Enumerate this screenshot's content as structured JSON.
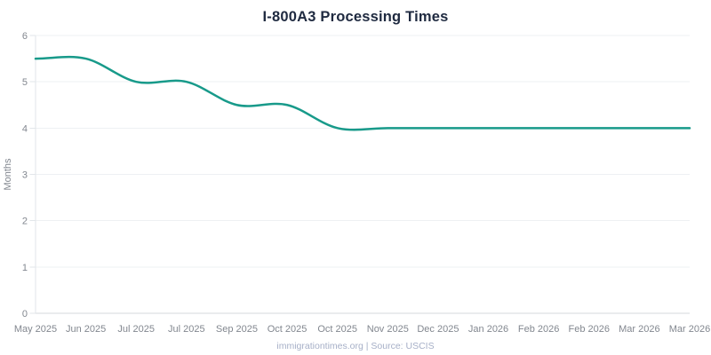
{
  "chart_data": {
    "type": "line",
    "title": "I-800A3 Processing Times",
    "xlabel": "",
    "ylabel": "Months",
    "categories": [
      "May 2025",
      "Jun 2025",
      "Jul 2025",
      "Jul 2025",
      "Sep 2025",
      "Oct 2025",
      "Oct 2025",
      "Nov 2025",
      "Dec 2025",
      "Jan 2026",
      "Feb 2026",
      "Feb 2026",
      "Mar 2026",
      "Mar 2026"
    ],
    "values": [
      5.5,
      5.5,
      5.0,
      5.0,
      4.5,
      4.5,
      4.0,
      4.0,
      4.0,
      4.0,
      4.0,
      4.0,
      4.0,
      4.0
    ],
    "ylim": [
      0,
      6
    ],
    "yticks": [
      0,
      1,
      2,
      3,
      4,
      5,
      6
    ],
    "grid": true,
    "legend": "none",
    "smooth": true,
    "line_color": "#189a8a",
    "source_note": "immigrationtimes.org | Source: USCIS"
  },
  "colors": {
    "title": "#1f2a40",
    "line": "#189a8a",
    "gridline": "#eef0f3",
    "axis_bottom": "#d4d8dd",
    "axis_left": "#e2e6ea",
    "tick_mark": "#e2e6ea",
    "tick_label": "#82878f",
    "footer_text": "#a6afc7"
  }
}
